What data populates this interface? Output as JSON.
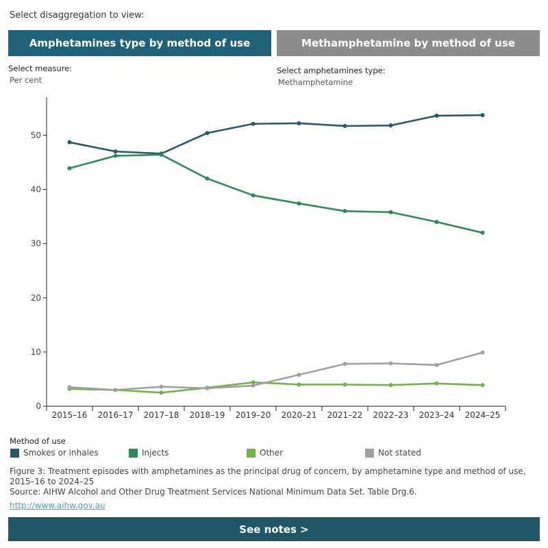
{
  "controls": {
    "prompt": "Select disaggregation to view:",
    "tab_active": "Amphetamines type by method of use",
    "tab_inactive": "Methamphetamine by method of use",
    "measure_label": "Select measure:",
    "measure_value": "Per cent",
    "type_label": "Select amphetamines type:",
    "type_value": "Methamphetamine"
  },
  "chart_data": {
    "type": "line",
    "categories": [
      "2015–16",
      "2016–17",
      "2017–18",
      "2018–19",
      "2019–20",
      "2020–21",
      "2021–22",
      "2022–23",
      "2023–24",
      "2024–25"
    ],
    "ylim": [
      0,
      57
    ],
    "yticks": [
      0,
      10,
      20,
      30,
      40,
      50
    ],
    "grid": false,
    "legend_title": "Method of use",
    "legend_position": "bottom",
    "series": [
      {
        "name": "Smokes or inhales",
        "color": "#275969",
        "values": [
          48.7,
          47.0,
          46.6,
          50.4,
          52.1,
          52.2,
          51.7,
          51.8,
          53.6,
          53.7
        ]
      },
      {
        "name": "Injects",
        "color": "#2e8b57",
        "values": [
          43.9,
          46.2,
          46.4,
          42.0,
          38.9,
          37.4,
          36.0,
          35.8,
          34.0,
          32.0
        ]
      },
      {
        "name": "Other",
        "color": "#71b347",
        "values": [
          3.2,
          3.0,
          2.5,
          3.4,
          4.4,
          4.0,
          4.0,
          3.9,
          4.2,
          3.9
        ]
      },
      {
        "name": "Not stated",
        "color": "#a0a0a0",
        "values": [
          3.5,
          3.0,
          3.6,
          3.3,
          3.8,
          5.8,
          7.8,
          7.9,
          7.6,
          9.9
        ]
      }
    ]
  },
  "caption": {
    "figure": "Figure 3: Treatment episodes with amphetamines as the principal drug of concern, by amphetamine type and method of use, 2015–16 to 2024–25",
    "source": "Source: AIHW Alcohol and Other Drug Treatment Services National Minimum Data Set. Table Drg.6.",
    "link": "http://www.aihw.gov.au"
  },
  "notes_button": "See notes >"
}
